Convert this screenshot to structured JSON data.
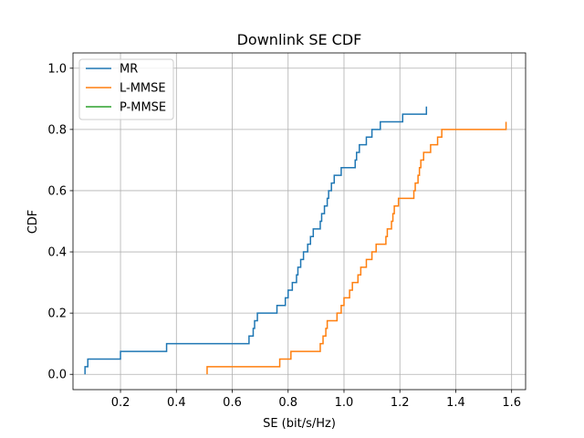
{
  "chart_data": {
    "type": "line",
    "step": "post",
    "title": "Downlink SE CDF",
    "xlabel": "SE (bit/s/Hz)",
    "ylabel": "CDF",
    "xlim": [
      0.03,
      1.65
    ],
    "ylim": [
      -0.05,
      1.05
    ],
    "xticks": [
      0.2,
      0.4,
      0.6,
      0.8,
      1.0,
      1.2,
      1.4,
      1.6
    ],
    "xtick_labels": [
      "0.2",
      "0.4",
      "0.6",
      "0.8",
      "1.0",
      "1.2",
      "1.4",
      "1.6"
    ],
    "yticks": [
      0.0,
      0.2,
      0.4,
      0.6,
      0.8,
      1.0
    ],
    "ytick_labels": [
      "0.0",
      "0.2",
      "0.4",
      "0.6",
      "0.8",
      "1.0"
    ],
    "grid": true,
    "legend_position": "top-left",
    "series": [
      {
        "name": "MR",
        "color": "#1f77b4",
        "x": [
          0.073,
          0.083,
          0.2,
          0.365,
          0.66,
          0.675,
          0.68,
          0.69,
          0.76,
          0.79,
          0.8,
          0.815,
          0.83,
          0.835,
          0.845,
          0.855,
          0.87,
          0.88,
          0.89,
          0.915,
          0.92,
          0.93,
          0.94,
          0.945,
          0.955,
          0.965,
          0.99,
          1.04,
          1.045,
          1.055,
          1.08,
          1.1,
          1.13,
          1.21,
          1.295
        ],
        "y": [
          0.025,
          0.05,
          0.075,
          0.1,
          0.125,
          0.15,
          0.175,
          0.2,
          0.225,
          0.25,
          0.275,
          0.3,
          0.325,
          0.35,
          0.375,
          0.4,
          0.425,
          0.45,
          0.475,
          0.5,
          0.525,
          0.55,
          0.575,
          0.6,
          0.625,
          0.65,
          0.675,
          0.7,
          0.725,
          0.75,
          0.775,
          0.8,
          0.825,
          0.85,
          0.875
        ]
      },
      {
        "name": "L-MMSE",
        "color": "#ff7f0e",
        "x": [
          0.51,
          0.77,
          0.81,
          0.915,
          0.925,
          0.935,
          0.94,
          0.975,
          0.99,
          1.0,
          1.02,
          1.03,
          1.05,
          1.06,
          1.08,
          1.1,
          1.115,
          1.15,
          1.155,
          1.17,
          1.175,
          1.18,
          1.195,
          1.25,
          1.255,
          1.265,
          1.27,
          1.275,
          1.285,
          1.31,
          1.335,
          1.35,
          1.58
        ],
        "y": [
          0.025,
          0.05,
          0.075,
          0.1,
          0.125,
          0.15,
          0.175,
          0.2,
          0.225,
          0.25,
          0.275,
          0.3,
          0.325,
          0.35,
          0.375,
          0.4,
          0.425,
          0.45,
          0.475,
          0.5,
          0.525,
          0.55,
          0.575,
          0.6,
          0.625,
          0.65,
          0.675,
          0.7,
          0.725,
          0.75,
          0.775,
          0.8,
          0.825
        ]
      },
      {
        "name": "P-MMSE",
        "color": "#2ca02c",
        "x": [],
        "y": []
      }
    ]
  }
}
